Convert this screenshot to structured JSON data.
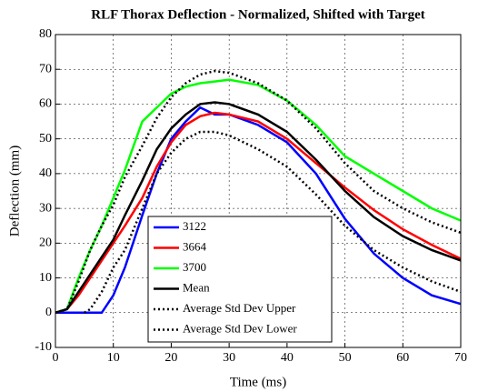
{
  "chart_data": {
    "type": "line",
    "title": "RLF Thorax Deflection - Normalized, Shifted with Target",
    "x_label": "Time (ms)",
    "y_label": "Deflection (mm)",
    "x": [
      0,
      2,
      4,
      5,
      6,
      8,
      10,
      12,
      15,
      17.5,
      20,
      22.5,
      25,
      27.5,
      30,
      35,
      40,
      45,
      50,
      55,
      60,
      65,
      70
    ],
    "series": [
      {
        "name": "3122",
        "color": "#0000ff",
        "style": "solid",
        "values": [
          0,
          0,
          0,
          0,
          0,
          0,
          5,
          13,
          28,
          40,
          50,
          55,
          59,
          57,
          57,
          54,
          49,
          40,
          27,
          17,
          10,
          5,
          2.5
        ]
      },
      {
        "name": "3664",
        "color": "#ff0000",
        "style": "solid",
        "values": [
          0,
          1,
          5,
          7.5,
          10,
          15,
          20,
          25,
          33,
          42,
          49,
          54,
          56.5,
          57.5,
          57,
          55,
          50,
          43,
          36,
          29.5,
          24,
          19.5,
          15.5
        ]
      },
      {
        "name": "3700",
        "color": "#00ff00",
        "style": "solid",
        "values": [
          0,
          1,
          10,
          14,
          18,
          25,
          33,
          41,
          55,
          59,
          63,
          65,
          66,
          66.5,
          67,
          65.5,
          61,
          54,
          45,
          40,
          35,
          30,
          26.5
        ]
      },
      {
        "name": "Mean",
        "color": "#000000",
        "style": "solid",
        "values": [
          0,
          1,
          6,
          8.5,
          11,
          16,
          21,
          28,
          38,
          47,
          53,
          57,
          60,
          60.5,
          60,
          57,
          52,
          44,
          35,
          27.5,
          22,
          18,
          15
        ]
      },
      {
        "name": "Average Std Dev Upper",
        "color": "#000000",
        "style": "dotted",
        "values": [
          0,
          1,
          9,
          13.5,
          18,
          25,
          31,
          39,
          48,
          56,
          62,
          66,
          68.5,
          69.5,
          69,
          66,
          61,
          53,
          43,
          35,
          30,
          26,
          23
        ]
      },
      {
        "name": "Average Std Dev Lower",
        "color": "#000000",
        "style": "dotted",
        "values": [
          null,
          null,
          null,
          0,
          1,
          6,
          13,
          18,
          30,
          40,
          46,
          50,
          52,
          52,
          51,
          47,
          42,
          34,
          25,
          18,
          13,
          9,
          6
        ]
      }
    ],
    "xlim": [
      0,
      70
    ],
    "ylim": [
      -10,
      80
    ],
    "xticks": [
      0,
      10,
      20,
      30,
      40,
      50,
      60,
      70
    ],
    "yticks": [
      -10,
      0,
      10,
      20,
      30,
      40,
      50,
      60,
      70,
      80
    ],
    "grid": true,
    "legend": "lower center"
  }
}
